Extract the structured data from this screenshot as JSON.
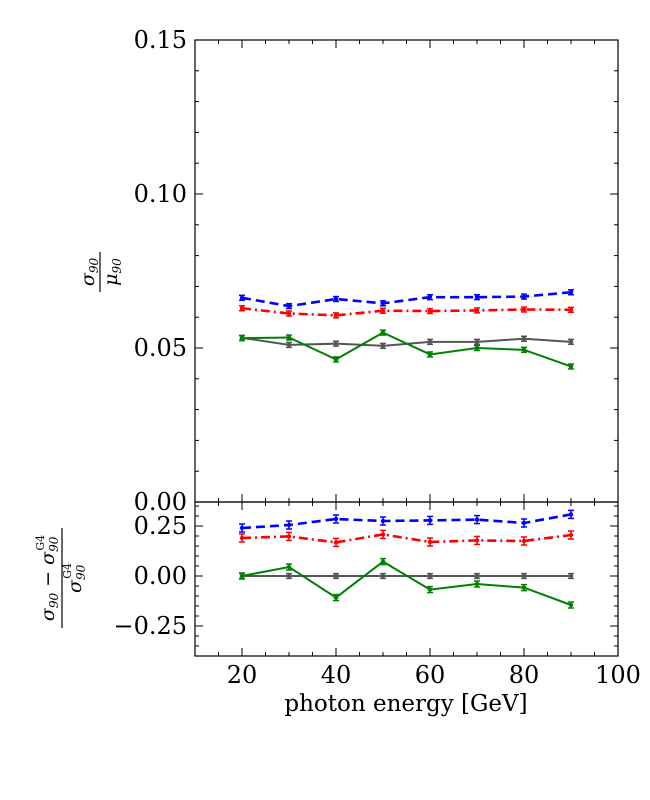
{
  "chart_data": [
    {
      "type": "line",
      "panel": "top",
      "ylabel": "σ90 / μ90",
      "xlim": [
        10,
        100
      ],
      "ylim": [
        0,
        0.15
      ],
      "yticks": [
        0,
        0.05,
        0.1,
        0.15
      ],
      "ytick_labels": [
        "0.00",
        "0.05",
        "0.10",
        "0.15"
      ],
      "grid": false,
      "x": [
        20,
        30,
        40,
        50,
        60,
        70,
        80,
        90
      ],
      "series": [
        {
          "color": "#0000ff",
          "style": "dashed",
          "values": [
            0.0663,
            0.0636,
            0.0659,
            0.0645,
            0.0665,
            0.0665,
            0.0667,
            0.0681
          ],
          "errors": [
            0.0008,
            0.0008,
            0.0008,
            0.0008,
            0.0008,
            0.0008,
            0.0008,
            0.0008
          ]
        },
        {
          "color": "#ff0000",
          "style": "dashdot",
          "values": [
            0.0629,
            0.0612,
            0.0606,
            0.0621,
            0.062,
            0.0622,
            0.0625,
            0.0624
          ],
          "errors": [
            0.0008,
            0.0008,
            0.0008,
            0.0008,
            0.0008,
            0.0008,
            0.0008,
            0.0008
          ]
        },
        {
          "color": "#555555",
          "style": "solid",
          "values": [
            0.0533,
            0.051,
            0.0514,
            0.0507,
            0.052,
            0.052,
            0.053,
            0.052
          ],
          "errors": [
            0.0008,
            0.0008,
            0.0008,
            0.0008,
            0.0008,
            0.0008,
            0.0008,
            0.0008
          ]
        },
        {
          "color": "#008000",
          "style": "solid",
          "values": [
            0.0532,
            0.0534,
            0.0463,
            0.055,
            0.0479,
            0.05,
            0.0494,
            0.044
          ],
          "errors": [
            0.0008,
            0.0008,
            0.0008,
            0.0008,
            0.0008,
            0.0008,
            0.0008,
            0.0008
          ]
        }
      ]
    },
    {
      "type": "line",
      "panel": "bottom",
      "ylabel": "(σ90 − σ90^G4) / σ90^G4",
      "xlabel": "photon energy [GeV]",
      "xlim": [
        10,
        100
      ],
      "xticks": [
        20,
        40,
        60,
        80,
        100
      ],
      "xtick_labels": [
        "20",
        "40",
        "60",
        "80",
        "100"
      ],
      "ylim": [
        -0.4,
        0.37
      ],
      "yticks": [
        -0.25,
        0,
        0.25
      ],
      "ytick_labels": [
        "−0.25",
        "0.00",
        "0.25"
      ],
      "grid": false,
      "x": [
        20,
        30,
        40,
        50,
        60,
        70,
        80,
        90
      ],
      "series": [
        {
          "color": "#0000ff",
          "style": "dashed",
          "values": [
            0.24,
            0.255,
            0.285,
            0.275,
            0.278,
            0.282,
            0.265,
            0.308
          ],
          "errors": [
            0.02,
            0.02,
            0.02,
            0.02,
            0.02,
            0.02,
            0.02,
            0.02
          ]
        },
        {
          "color": "#ff0000",
          "style": "dashdot",
          "values": [
            0.19,
            0.198,
            0.168,
            0.208,
            0.17,
            0.178,
            0.175,
            0.205
          ],
          "errors": [
            0.02,
            0.02,
            0.02,
            0.02,
            0.02,
            0.02,
            0.02,
            0.02
          ]
        },
        {
          "color": "#555555",
          "style": "solid",
          "values": [
            0,
            0,
            0,
            0,
            0,
            0,
            0,
            0
          ],
          "errors": [
            0.012,
            0.012,
            0.012,
            0.012,
            0.012,
            0.012,
            0.012,
            0.012
          ]
        },
        {
          "color": "#008000",
          "style": "solid",
          "values": [
            0.0,
            0.045,
            -0.108,
            0.072,
            -0.068,
            -0.04,
            -0.058,
            -0.145
          ],
          "errors": [
            0.015,
            0.015,
            0.015,
            0.015,
            0.015,
            0.015,
            0.015,
            0.015
          ]
        }
      ]
    }
  ]
}
